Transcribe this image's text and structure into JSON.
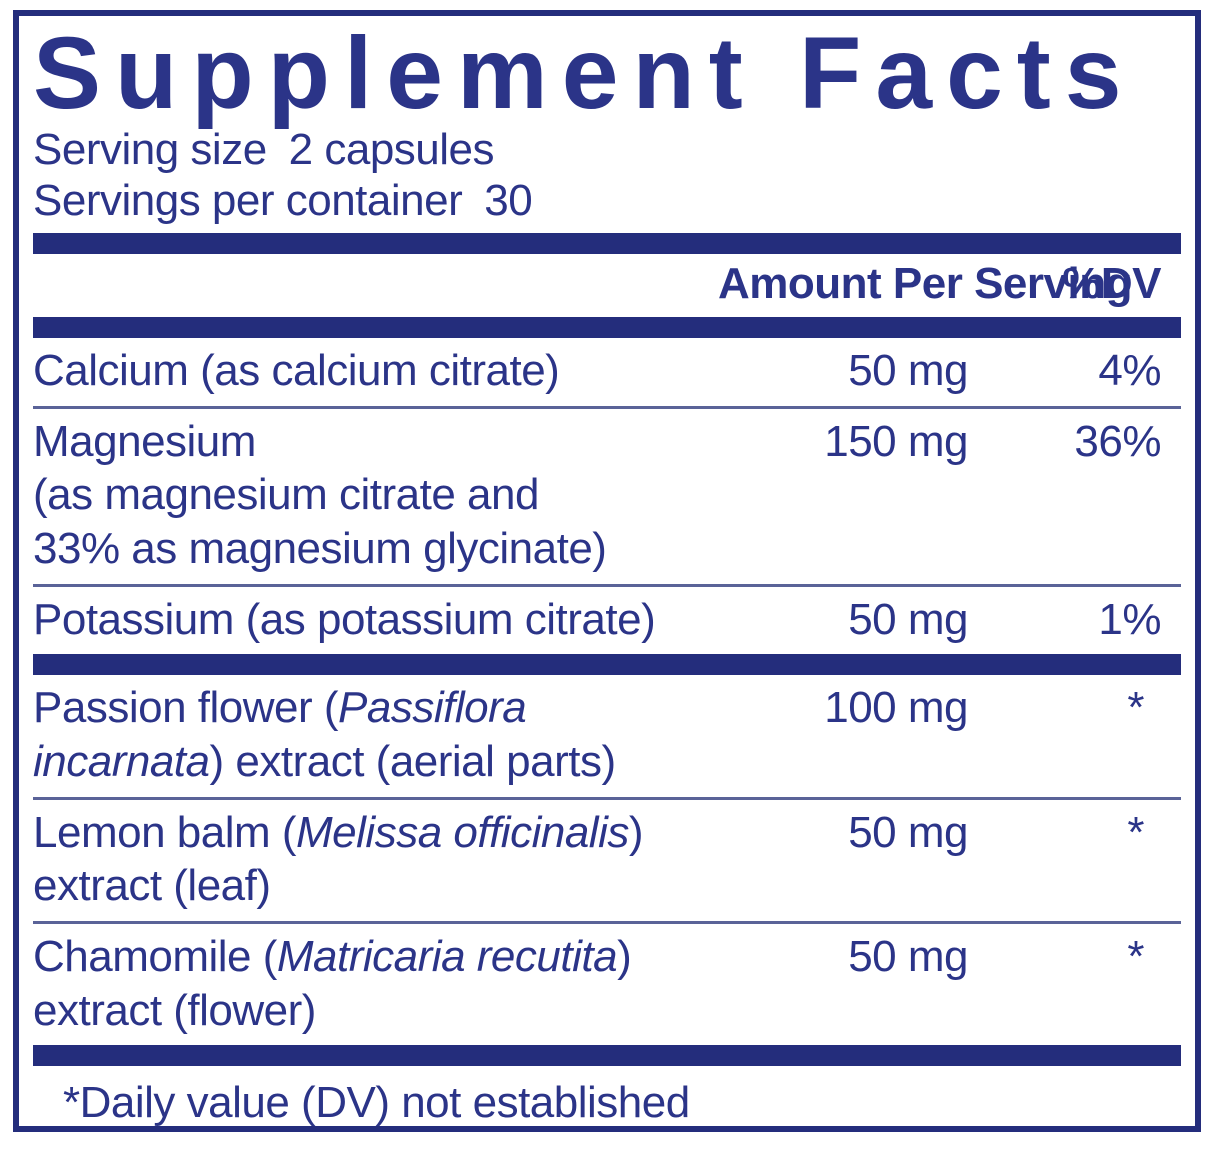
{
  "panel": {
    "title": "Supplement Facts",
    "serving": {
      "size_label": "Serving size",
      "size_value": "2 capsules",
      "container_label": "Servings per container",
      "container_value": "30"
    },
    "header": {
      "amount": "Amount Per Serving",
      "dv": "%DV"
    },
    "rows": [
      {
        "name": "Calcium (as calcium citrate)",
        "amount": "50 mg",
        "dv": "4%"
      },
      {
        "lines": [
          "Magnesium",
          "(as magnesium citrate and",
          "33% as magnesium glycinate)"
        ],
        "amount": "150 mg",
        "dv": "36%"
      },
      {
        "name": "Potassium (as potassium citrate)",
        "amount": "50 mg",
        "dv": "1%"
      },
      {
        "l1_regular": "Passion flower (",
        "l1_italic": "Passiflora",
        "l2_italic": "incarnata",
        "l2_regular": ") extract (aerial parts)",
        "amount": "100 mg",
        "dv": "*"
      },
      {
        "l1_regular": "Lemon balm (",
        "l1_italic": "Melissa officinalis",
        "l1_close": ")",
        "l2": "extract (leaf)",
        "amount": "50 mg",
        "dv": "*"
      },
      {
        "l1_regular": "Chamomile (",
        "l1_italic": "Matricaria recutita",
        "l1_close": ")",
        "l2": "extract (flower)",
        "amount": "50 mg",
        "dv": "*"
      }
    ],
    "footnote": "*Daily value (DV) not established",
    "colors": {
      "navy_bar": "#242d7c",
      "navy_text": "#2b3488",
      "thin_rule": "#5a6398"
    }
  }
}
